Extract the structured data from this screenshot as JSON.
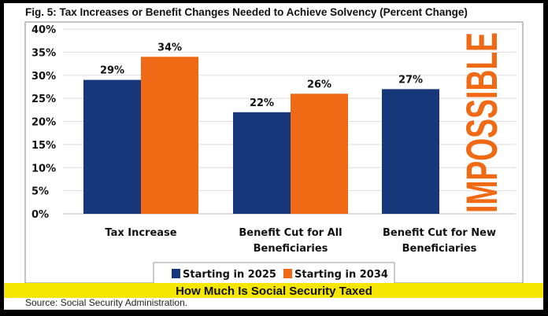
{
  "chart_data": {
    "type": "bar",
    "title": "Fig. 5: Tax Increases or Benefit Changes Needed to Achieve Solvency (Percent Change)",
    "xlabel": "",
    "ylabel": "",
    "ylim": [
      0,
      40
    ],
    "yticks": [
      "0%",
      "5%",
      "10%",
      "15%",
      "20%",
      "25%",
      "30%",
      "35%",
      "40%"
    ],
    "grid": true,
    "legend_placement": "bottom",
    "categories": [
      [
        "Tax Increase"
      ],
      [
        "Benefit Cut for All",
        "Beneficiaries"
      ],
      [
        "Benefit Cut for New",
        "Beneficiaries"
      ]
    ],
    "series": [
      {
        "name": "Starting in 2025",
        "color": "#17377a",
        "values": [
          29,
          22,
          27
        ],
        "labels": [
          "29%",
          "22%",
          "27%"
        ]
      },
      {
        "name": "Starting in 2034",
        "color": "#f06914",
        "values": [
          34,
          26,
          null
        ],
        "labels": [
          "34%",
          "26%",
          ""
        ]
      }
    ],
    "annotation": "IMPOSSIBLE",
    "annotation_color": "#f06914"
  },
  "banner": {
    "text": "How Much Is Social Security Taxed",
    "color": "#f5e600"
  },
  "source": "Source: Social Security Administration."
}
